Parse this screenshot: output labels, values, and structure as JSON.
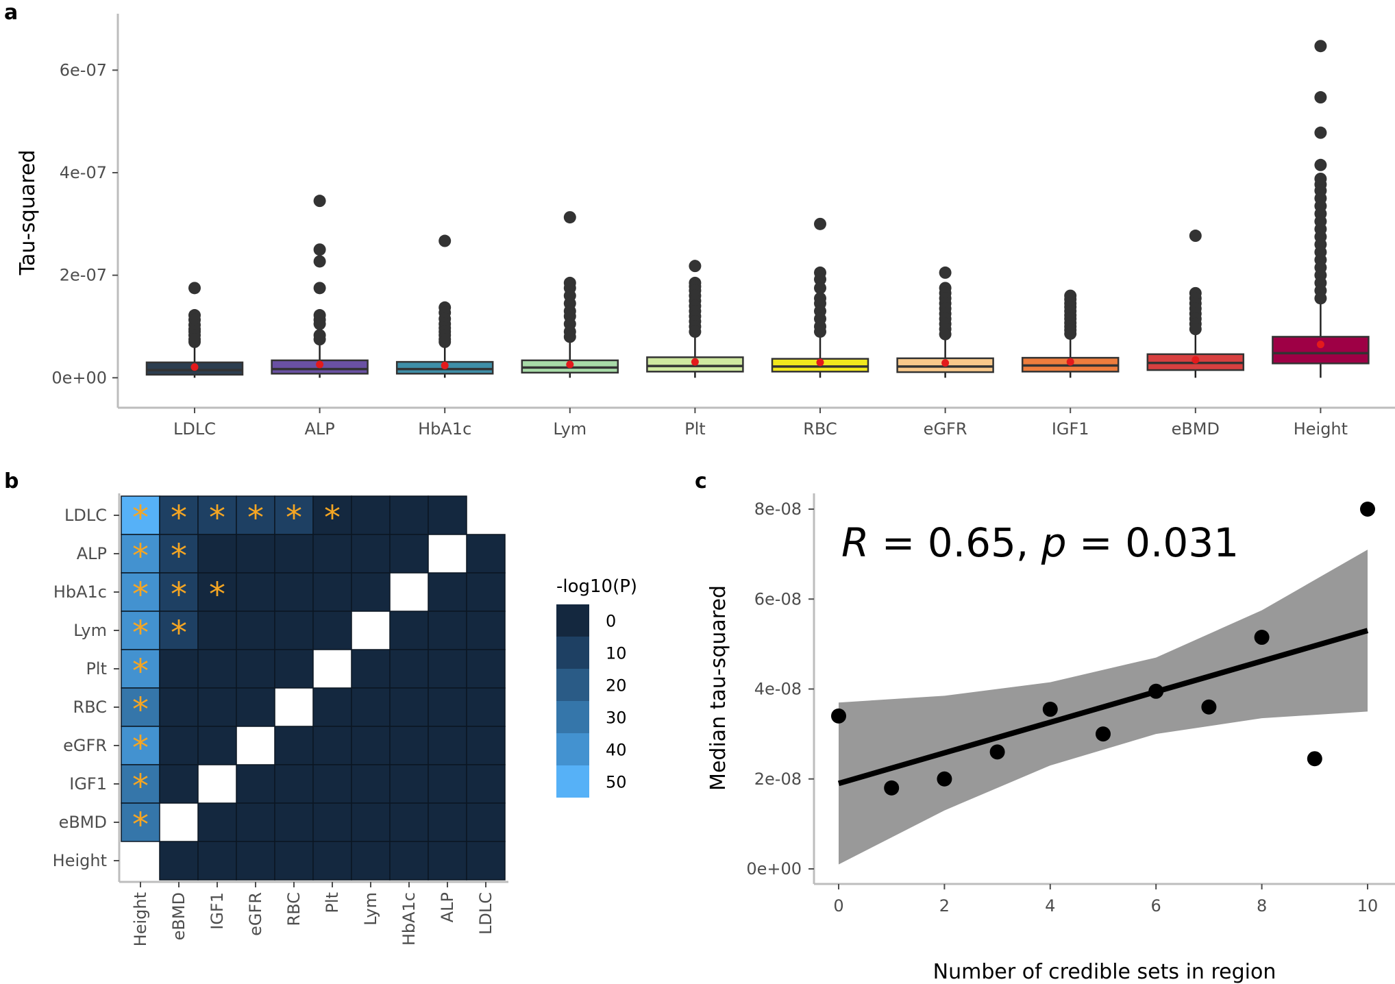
{
  "panel_labels": {
    "a": "a",
    "b": "b",
    "c": "c"
  },
  "chart_data": [
    {
      "type": "box",
      "panel": "a",
      "ylabel": "Tau-squared",
      "xlabel": "",
      "ylim": [
        -2.5e-08,
        6.7e-07
      ],
      "yticks": [
        0,
        2e-07,
        4e-07,
        6e-07
      ],
      "ytick_labels": [
        "0e+00",
        "2e-07",
        "4e-07",
        "6e-07"
      ],
      "categories": [
        {
          "name": "LDLC",
          "color": "#2c3e50",
          "q1": 6e-09,
          "median": 1.5e-08,
          "q3": 3e-08,
          "whisker_low": 0.0,
          "whisker_high": 6.5e-08,
          "mean": 2.1e-08,
          "outliers": [
            1.75e-07,
            1.22e-07,
            1.13e-07,
            1.03e-07,
            9.5e-08,
            9e-08,
            8.3e-08,
            7.5e-08,
            7e-08
          ]
        },
        {
          "name": "ALP",
          "color": "#6a51a3",
          "q1": 8e-09,
          "median": 1.7e-08,
          "q3": 3.4e-08,
          "whisker_low": 0.0,
          "whisker_high": 7e-08,
          "mean": 2.6e-08,
          "outliers": [
            3.45e-07,
            2.5e-07,
            2.27e-07,
            1.75e-07,
            1.22e-07,
            1.13e-07,
            1.05e-07,
            8.3e-08,
            7.5e-08
          ]
        },
        {
          "name": "HbA1c",
          "color": "#3f8fa8",
          "q1": 8e-09,
          "median": 1.7e-08,
          "q3": 3.1e-08,
          "whisker_low": 0.0,
          "whisker_high": 6.5e-08,
          "mean": 2.4e-08,
          "outliers": [
            2.67e-07,
            1.37e-07,
            1.27e-07,
            1.15e-07,
            1.05e-07,
            9.7e-08,
            9e-08,
            8.3e-08,
            7.5e-08,
            7e-08
          ]
        },
        {
          "name": "Lym",
          "color": "#a8dba8",
          "q1": 1e-08,
          "median": 2e-08,
          "q3": 3.4e-08,
          "whisker_low": 0.0,
          "whisker_high": 7e-08,
          "mean": 2.6e-08,
          "outliers": [
            3.13e-07,
            1.85e-07,
            1.75e-07,
            1.6e-07,
            1.45e-07,
            1.3e-07,
            1.2e-07,
            1.05e-07,
            9e-08,
            8e-08
          ]
        },
        {
          "name": "Plt",
          "color": "#cfe8a0",
          "q1": 1.2e-08,
          "median": 2.3e-08,
          "q3": 4e-08,
          "whisker_low": 0.0,
          "whisker_high": 8e-08,
          "mean": 3.1e-08,
          "outliers": [
            2.18e-07,
            1.85e-07,
            1.78e-07,
            1.7e-07,
            1.6e-07,
            1.5e-07,
            1.4e-07,
            1.3e-07,
            1.2e-07,
            1.1e-07,
            1e-07,
            9e-08
          ]
        },
        {
          "name": "RBC",
          "color": "#f2e81d",
          "q1": 1.2e-08,
          "median": 2.2e-08,
          "q3": 3.7e-08,
          "whisker_low": 0.0,
          "whisker_high": 8e-08,
          "mean": 3e-08,
          "outliers": [
            3e-07,
            2.05e-07,
            1.92e-07,
            1.75e-07,
            1.55e-07,
            1.45e-07,
            1.3e-07,
            1.15e-07,
            1e-07,
            9e-08
          ]
        },
        {
          "name": "eGFR",
          "color": "#f9c98b",
          "q1": 1.1e-08,
          "median": 2.2e-08,
          "q3": 3.8e-08,
          "whisker_low": 0.0,
          "whisker_high": 8e-08,
          "mean": 2.9e-08,
          "outliers": [
            2.05e-07,
            1.75e-07,
            1.65e-07,
            1.55e-07,
            1.45e-07,
            1.35e-07,
            1.25e-07,
            1.15e-07,
            1.05e-07,
            9.5e-08,
            8.5e-08
          ]
        },
        {
          "name": "IGF1",
          "color": "#ee7d3d",
          "q1": 1.2e-08,
          "median": 2.4e-08,
          "q3": 3.9e-08,
          "whisker_low": 0.0,
          "whisker_high": 8e-08,
          "mean": 3.1e-08,
          "outliers": [
            1.6e-07,
            1.53e-07,
            1.45e-07,
            1.38e-07,
            1.3e-07,
            1.22e-07,
            1.15e-07,
            1.07e-07,
            1e-07,
            9.3e-08,
            8.6e-08
          ]
        },
        {
          "name": "eBMD",
          "color": "#d84040",
          "q1": 1.5e-08,
          "median": 2.9e-08,
          "q3": 4.6e-08,
          "whisker_low": 0.0,
          "whisker_high": 9e-08,
          "mean": 3.5e-08,
          "outliers": [
            2.77e-07,
            1.65e-07,
            1.55e-07,
            1.45e-07,
            1.35e-07,
            1.25e-07,
            1.15e-07,
            1.05e-07,
            9.5e-08
          ]
        },
        {
          "name": "Height",
          "color": "#9e0045",
          "q1": 2.8e-08,
          "median": 4.8e-08,
          "q3": 8e-08,
          "whisker_low": 0.0,
          "whisker_high": 1.45e-07,
          "mean": 6.5e-08,
          "outliers": [
            6.47e-07,
            5.47e-07,
            4.78e-07,
            4.15e-07,
            3.88e-07,
            3.77e-07,
            3.65e-07,
            3.5e-07,
            3.35e-07,
            3.2e-07,
            3.05e-07,
            2.9e-07,
            2.75e-07,
            2.6e-07,
            2.45e-07,
            2.3e-07,
            2.15e-07,
            2e-07,
            1.85e-07,
            1.7e-07,
            1.55e-07
          ]
        }
      ]
    },
    {
      "type": "heatmap",
      "panel": "b",
      "row_labels": [
        "LDLC",
        "ALP",
        "HbA1c",
        "Lym",
        "Plt",
        "RBC",
        "eGFR",
        "IGF1",
        "eBMD",
        "Height"
      ],
      "col_labels": [
        "Height",
        "eBMD",
        "IGF1",
        "eGFR",
        "RBC",
        "Plt",
        "Lym",
        "HbA1c",
        "ALP",
        "LDLC"
      ],
      "values": [
        [
          50,
          8,
          6,
          5,
          5,
          4,
          2,
          2,
          2,
          null
        ],
        [
          40,
          6,
          3,
          3,
          2,
          2,
          2,
          2,
          null,
          2
        ],
        [
          40,
          7,
          4,
          3,
          3,
          3,
          2,
          null,
          1,
          1
        ],
        [
          40,
          5,
          3,
          2,
          2,
          2,
          null,
          1,
          1,
          1
        ],
        [
          35,
          4,
          2,
          2,
          2,
          null,
          1,
          1,
          1,
          1
        ],
        [
          32,
          3,
          2,
          2,
          null,
          1,
          1,
          1,
          1,
          1
        ],
        [
          35,
          4,
          2,
          null,
          1,
          1,
          1,
          1,
          1,
          1
        ],
        [
          34,
          3,
          null,
          1,
          1,
          1,
          1,
          1,
          1,
          1
        ],
        [
          30,
          null,
          1,
          1,
          1,
          1,
          1,
          1,
          1,
          1
        ],
        [
          null,
          1,
          1,
          1,
          1,
          1,
          1,
          1,
          1,
          1
        ]
      ],
      "significant": [
        [
          true,
          true,
          true,
          true,
          true,
          true,
          false,
          false,
          false,
          false
        ],
        [
          true,
          true,
          false,
          false,
          false,
          false,
          false,
          false,
          false,
          false
        ],
        [
          true,
          true,
          true,
          false,
          false,
          false,
          false,
          false,
          false,
          false
        ],
        [
          true,
          true,
          false,
          false,
          false,
          false,
          false,
          false,
          false,
          false
        ],
        [
          true,
          false,
          false,
          false,
          false,
          false,
          false,
          false,
          false,
          false
        ],
        [
          true,
          false,
          false,
          false,
          false,
          false,
          false,
          false,
          false,
          false
        ],
        [
          true,
          false,
          false,
          false,
          false,
          false,
          false,
          false,
          false,
          false
        ],
        [
          true,
          false,
          false,
          false,
          false,
          false,
          false,
          false,
          false,
          false
        ],
        [
          true,
          false,
          false,
          false,
          false,
          false,
          false,
          false,
          false,
          false
        ],
        [
          false,
          false,
          false,
          false,
          false,
          false,
          false,
          false,
          false,
          false
        ]
      ],
      "present": [
        [
          true,
          true,
          true,
          true,
          true,
          true,
          true,
          true,
          true,
          false
        ],
        [
          true,
          true,
          true,
          true,
          true,
          true,
          true,
          true,
          false,
          true
        ],
        [
          true,
          true,
          true,
          true,
          true,
          true,
          true,
          false,
          true,
          true
        ],
        [
          true,
          true,
          true,
          true,
          true,
          true,
          false,
          true,
          true,
          true
        ],
        [
          true,
          true,
          true,
          true,
          true,
          false,
          true,
          true,
          true,
          true
        ],
        [
          true,
          true,
          true,
          true,
          false,
          true,
          true,
          true,
          true,
          true
        ],
        [
          true,
          true,
          true,
          false,
          true,
          true,
          true,
          true,
          true,
          true
        ],
        [
          true,
          true,
          false,
          true,
          true,
          true,
          true,
          true,
          true,
          true
        ],
        [
          true,
          false,
          true,
          true,
          true,
          true,
          true,
          true,
          true,
          true
        ],
        [
          false,
          true,
          true,
          true,
          true,
          true,
          true,
          true,
          true,
          true
        ]
      ],
      "significance_marker": "*",
      "legend": {
        "title": "-log10(P)",
        "breaks": [
          0,
          10,
          20,
          30,
          40,
          50
        ],
        "colors": [
          "#14283f",
          "#1e4063",
          "#2a5b86",
          "#3576aa",
          "#4392d0",
          "#56b1f7"
        ]
      }
    },
    {
      "type": "scatter",
      "panel": "c",
      "xlabel": "Number of credible sets in region",
      "ylabel": "Median tau-squared",
      "xlim": [
        -0.5,
        10.4
      ],
      "ylim": [
        -3e-09,
        8.3e-08
      ],
      "xticks": [
        0,
        2,
        4,
        6,
        8,
        10
      ],
      "yticks": [
        0,
        2e-08,
        4e-08,
        6e-08,
        8e-08
      ],
      "ytick_labels": [
        "0e+00",
        "2e-08",
        "4e-08",
        "6e-08",
        "8e-08"
      ],
      "x": [
        0,
        1,
        2,
        3,
        4,
        5,
        6,
        7,
        8,
        9,
        10
      ],
      "y": [
        3.4e-08,
        1.8e-08,
        2e-08,
        2.6e-08,
        3.55e-08,
        3e-08,
        3.95e-08,
        3.6e-08,
        5.15e-08,
        2.45e-08,
        8e-08
      ],
      "fit": {
        "intercept": 1.9e-08,
        "slope": 3.4e-09
      },
      "ci_lower": [
        [
          0,
          1e-09
        ],
        [
          2,
          1.3e-08
        ],
        [
          4,
          2.3e-08
        ],
        [
          6,
          3e-08
        ],
        [
          8,
          3.35e-08
        ],
        [
          10,
          3.5e-08
        ]
      ],
      "ci_upper": [
        [
          0,
          3.7e-08
        ],
        [
          2,
          3.85e-08
        ],
        [
          4,
          4.15e-08
        ],
        [
          6,
          4.7e-08
        ],
        [
          8,
          5.75e-08
        ],
        [
          10,
          7.1e-08
        ]
      ],
      "annotation": {
        "R_label": "R",
        "r_text": " = 0.65, ",
        "p_label": "p",
        "p_text": " = 0.031"
      }
    }
  ]
}
